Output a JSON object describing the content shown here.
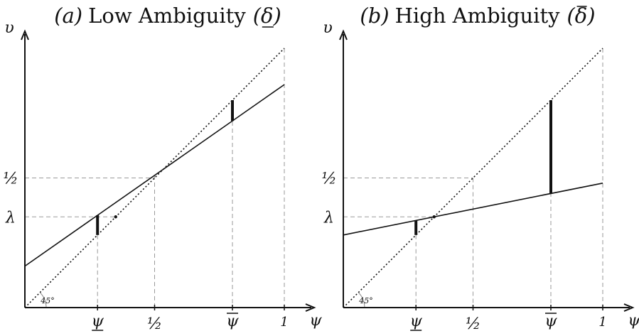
{
  "panels": [
    {
      "id": "a",
      "title_prefix": "(a)",
      "title_text": "Low Ambiguity",
      "title_delta": "(δ)",
      "delta_mark": "underline",
      "y_label": "υ",
      "x_label": "ψ",
      "y_ticks": {
        "half": "½",
        "lambda": "λ"
      },
      "x_ticks": {
        "psi_low": "ψ",
        "half": "½",
        "psi_high": "ψ",
        "one": "1"
      },
      "angle_label": "45°",
      "line": {
        "intercept": 0.16,
        "slope": 0.7
      },
      "lambda": 0.35,
      "psi_low": 0.28,
      "psi_high": 0.8
    },
    {
      "id": "b",
      "title_prefix": "(b)",
      "title_text": "High Ambiguity",
      "title_delta": "(δ)",
      "delta_mark": "overline",
      "y_label": "υ",
      "x_label": "ψ",
      "y_ticks": {
        "half": "½",
        "lambda": "λ"
      },
      "x_ticks": {
        "psi_low": "ψ",
        "half": "½",
        "psi_high": "ψ",
        "one": "1"
      },
      "angle_label": "45°",
      "line": {
        "intercept": 0.28,
        "slope": 0.2
      },
      "lambda": 0.35,
      "psi_low": 0.28,
      "psi_high": 0.8
    }
  ]
}
